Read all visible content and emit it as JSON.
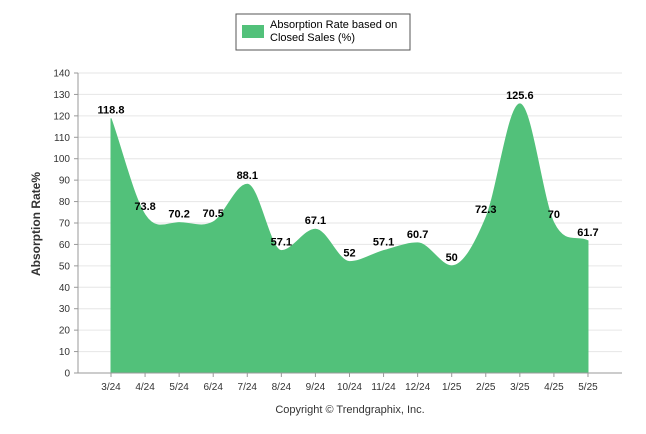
{
  "chart_data": {
    "type": "area",
    "categories": [
      "3/24",
      "4/24",
      "5/24",
      "6/24",
      "7/24",
      "8/24",
      "9/24",
      "10/24",
      "11/24",
      "12/24",
      "1/25",
      "2/25",
      "3/25",
      "4/25",
      "5/25"
    ],
    "series": [
      {
        "name": "Absorption Rate based on Closed Sales (%)",
        "values": [
          118.8,
          73.8,
          70.2,
          70.5,
          88.1,
          57.1,
          67.1,
          52,
          57.1,
          60.7,
          50,
          72.3,
          125.6,
          70,
          61.7
        ],
        "labels": [
          "118.8",
          "73.8",
          "70.2",
          "70.5",
          "88.1",
          "57.1",
          "67.1",
          "52",
          "57.1",
          "60.7",
          "50",
          "72.3",
          "125.6",
          "70",
          "61.7"
        ]
      }
    ],
    "ylabel": "Absorption Rate%",
    "ylim": [
      0,
      140
    ],
    "yticks": [
      0,
      10,
      20,
      30,
      40,
      50,
      60,
      70,
      80,
      90,
      100,
      110,
      120,
      130,
      140
    ],
    "grid": true,
    "legend_position": "top-center",
    "legend_lines": [
      "Absorption Rate based on",
      "Closed Sales (%)"
    ],
    "series_color": "#52c17a",
    "grid_color": "#e6e6e6"
  },
  "footer": {
    "copyright": "Copyright © Trendgraphix, Inc."
  }
}
